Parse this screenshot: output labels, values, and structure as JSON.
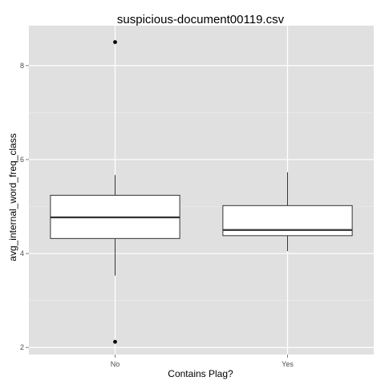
{
  "chart_data": {
    "type": "box",
    "title": "suspicious-document00119.csv",
    "xlabel": "Contains Plag?",
    "ylabel": "avg_internal_word_freq_class",
    "categories": [
      "No",
      "Yes"
    ],
    "ylim": [
      1.85,
      8.85
    ],
    "yticks": [
      2,
      4,
      6,
      8
    ],
    "grid": true,
    "colors": {
      "panel_background": "#e0e0e0",
      "grid_major": "#ffffff",
      "grid_minor": "#ebebeb",
      "box_fill": "#ffffff",
      "box_line": "#333333",
      "outlier": "#000000",
      "tick_label": "#4d4d4d"
    },
    "boxes": [
      {
        "category": "No",
        "whisker_low": 3.53,
        "q1": 4.32,
        "median": 4.77,
        "q3": 5.24,
        "whisker_high": 5.67,
        "outliers": [
          8.5,
          2.12
        ]
      },
      {
        "category": "Yes",
        "whisker_low": 4.05,
        "q1": 4.38,
        "median": 4.5,
        "q3": 5.02,
        "whisker_high": 5.73,
        "outliers": []
      }
    ]
  }
}
